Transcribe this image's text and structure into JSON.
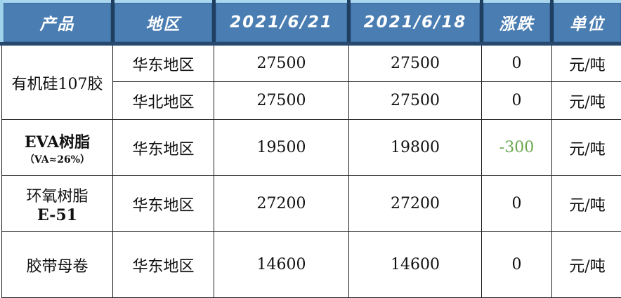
{
  "header": [
    "产品",
    "地区",
    "2021/6/21",
    "2021/6/18",
    "涨跌",
    "单位"
  ],
  "rows": [
    {
      "product": "有机硅107胶",
      "product_sub": "",
      "regions": [
        {
          "region": "华东地区",
          "price_new": "27500",
          "price_old": "27500",
          "change": "0",
          "unit": "元/吨"
        },
        {
          "region": "华北地区",
          "price_new": "27500",
          "price_old": "27500",
          "change": "0",
          "unit": "元/吨"
        }
      ]
    },
    {
      "product": "EVA树脂",
      "product_sub": "（VA≈26%）",
      "regions": [
        {
          "region": "华东地区",
          "price_new": "19500",
          "price_old": "19800",
          "change": "-300",
          "unit": "元/吨"
        }
      ]
    },
    {
      "product": "环氧树脂",
      "product_sub": "E-51",
      "regions": [
        {
          "region": "华东地区",
          "price_new": "27200",
          "price_old": "27200",
          "change": "0",
          "unit": "元/吨"
        }
      ]
    },
    {
      "product": "胶带母卷",
      "product_sub": "",
      "regions": [
        {
          "region": "华东地区",
          "price_new": "14600",
          "price_old": "14600",
          "change": "0",
          "unit": "元/吨"
        }
      ]
    }
  ],
  "colors": {
    "header_bg": "#4a7db2",
    "negative": "#6aa84f"
  }
}
